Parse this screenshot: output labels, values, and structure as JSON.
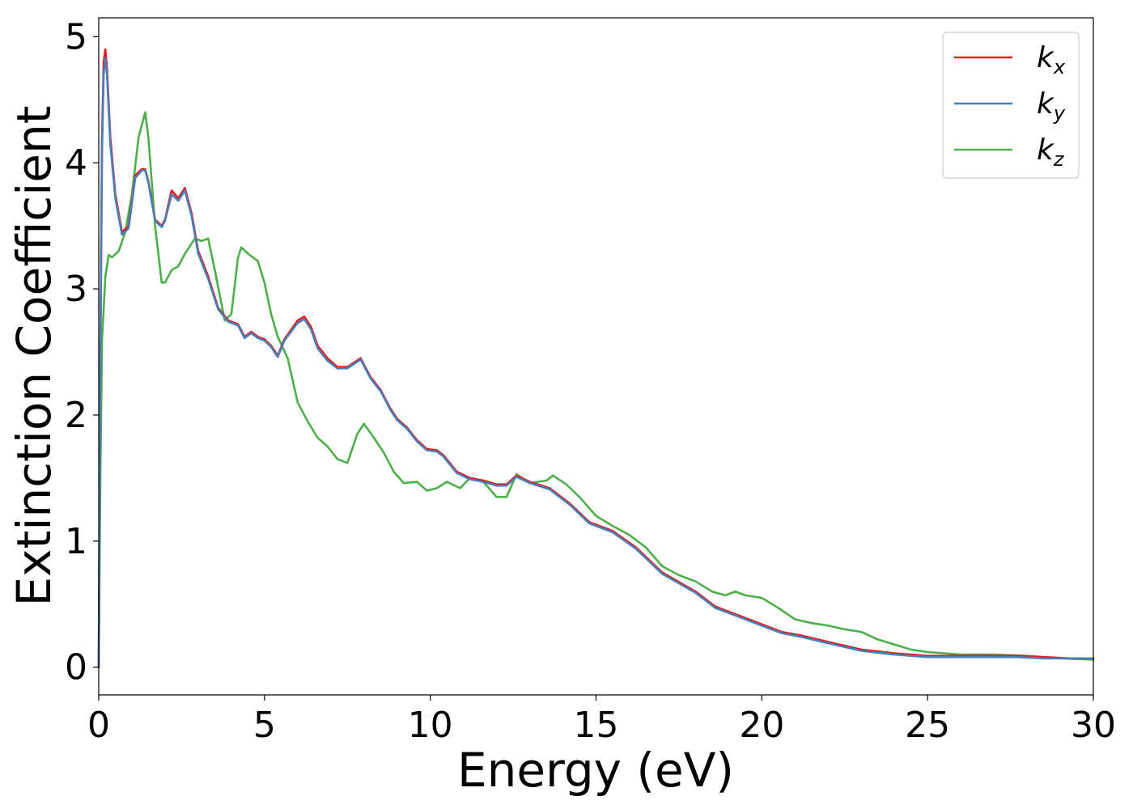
{
  "chart_data": {
    "type": "line",
    "xlabel": "Energy (eV)",
    "ylabel": "Extinction Coefficient",
    "xlim": [
      0,
      30
    ],
    "ylim": [
      -0.22,
      5.15
    ],
    "xticks": [
      0,
      5,
      10,
      15,
      20,
      25,
      30
    ],
    "yticks": [
      0,
      1,
      2,
      3,
      4,
      5
    ],
    "grid": false,
    "legend_position": "top-right",
    "series": [
      {
        "name": "k",
        "subscript": "x",
        "color": "#e41a1c",
        "x": [
          0,
          0.05,
          0.1,
          0.15,
          0.2,
          0.25,
          0.35,
          0.5,
          0.7,
          0.9,
          1.1,
          1.3,
          1.4,
          1.5,
          1.7,
          1.9,
          2.0,
          2.2,
          2.4,
          2.6,
          2.8,
          3.0,
          3.3,
          3.6,
          3.9,
          4.2,
          4.4,
          4.6,
          4.8,
          5.0,
          5.2,
          5.4,
          5.6,
          6.0,
          6.2,
          6.4,
          6.6,
          6.9,
          7.2,
          7.5,
          7.9,
          8.2,
          8.5,
          8.8,
          9.0,
          9.3,
          9.6,
          9.9,
          10.2,
          10.4,
          10.8,
          11.2,
          11.6,
          12.0,
          12.3,
          12.6,
          13.0,
          13.6,
          14.2,
          14.8,
          15.5,
          16.2,
          17.0,
          18.0,
          18.6,
          19.2,
          20.0,
          20.6,
          21.2,
          22.0,
          23.0,
          24.0,
          25.0,
          26.0,
          27.0,
          27.7,
          28.5,
          29.3,
          30.0
        ],
        "y": [
          0,
          2.5,
          4.2,
          4.8,
          4.9,
          4.75,
          4.2,
          3.75,
          3.45,
          3.5,
          3.9,
          3.95,
          3.95,
          3.85,
          3.55,
          3.5,
          3.55,
          3.78,
          3.72,
          3.8,
          3.6,
          3.3,
          3.1,
          2.85,
          2.75,
          2.72,
          2.62,
          2.66,
          2.62,
          2.6,
          2.55,
          2.47,
          2.6,
          2.75,
          2.78,
          2.7,
          2.55,
          2.45,
          2.38,
          2.38,
          2.45,
          2.3,
          2.2,
          2.05,
          1.97,
          1.9,
          1.8,
          1.73,
          1.72,
          1.68,
          1.55,
          1.5,
          1.48,
          1.45,
          1.45,
          1.52,
          1.47,
          1.42,
          1.3,
          1.15,
          1.08,
          0.95,
          0.75,
          0.6,
          0.48,
          0.42,
          0.34,
          0.28,
          0.25,
          0.2,
          0.14,
          0.11,
          0.09,
          0.09,
          0.09,
          0.09,
          0.08,
          0.07,
          0.07
        ]
      },
      {
        "name": "k",
        "subscript": "y",
        "color": "#4a7eb5",
        "x": [
          0,
          0.05,
          0.1,
          0.15,
          0.2,
          0.25,
          0.35,
          0.5,
          0.7,
          0.9,
          1.1,
          1.3,
          1.4,
          1.5,
          1.7,
          1.9,
          2.0,
          2.2,
          2.4,
          2.6,
          2.8,
          3.0,
          3.3,
          3.6,
          3.9,
          4.2,
          4.4,
          4.6,
          4.8,
          5.0,
          5.2,
          5.4,
          5.6,
          6.0,
          6.2,
          6.4,
          6.6,
          6.9,
          7.2,
          7.5,
          7.9,
          8.2,
          8.5,
          8.8,
          9.0,
          9.3,
          9.6,
          9.9,
          10.2,
          10.4,
          10.8,
          11.2,
          11.6,
          12.0,
          12.3,
          12.6,
          13.0,
          13.6,
          14.2,
          14.8,
          15.5,
          16.2,
          17.0,
          18.0,
          18.6,
          19.2,
          20.0,
          20.6,
          21.2,
          22.0,
          23.0,
          24.0,
          25.0,
          26.0,
          27.0,
          27.7,
          28.5,
          29.3,
          30.0
        ],
        "y": [
          0,
          2.4,
          4.1,
          4.7,
          4.83,
          4.7,
          4.15,
          3.72,
          3.43,
          3.48,
          3.88,
          3.94,
          3.94,
          3.84,
          3.54,
          3.49,
          3.54,
          3.75,
          3.7,
          3.78,
          3.58,
          3.28,
          3.08,
          2.84,
          2.74,
          2.71,
          2.61,
          2.65,
          2.61,
          2.59,
          2.54,
          2.46,
          2.59,
          2.73,
          2.76,
          2.68,
          2.53,
          2.43,
          2.37,
          2.37,
          2.44,
          2.29,
          2.19,
          2.04,
          1.96,
          1.89,
          1.79,
          1.72,
          1.71,
          1.67,
          1.54,
          1.49,
          1.47,
          1.44,
          1.44,
          1.51,
          1.46,
          1.41,
          1.29,
          1.14,
          1.07,
          0.94,
          0.74,
          0.59,
          0.47,
          0.41,
          0.33,
          0.27,
          0.24,
          0.19,
          0.13,
          0.1,
          0.08,
          0.08,
          0.08,
          0.08,
          0.07,
          0.07,
          0.07
        ]
      },
      {
        "name": "k",
        "subscript": "z",
        "color": "#4daf4a",
        "x": [
          0,
          0.05,
          0.1,
          0.2,
          0.3,
          0.4,
          0.6,
          0.8,
          1.0,
          1.2,
          1.4,
          1.5,
          1.7,
          1.9,
          2.0,
          2.2,
          2.4,
          2.6,
          2.9,
          3.1,
          3.3,
          3.5,
          3.8,
          4.0,
          4.2,
          4.3,
          4.5,
          4.8,
          5.0,
          5.2,
          5.4,
          5.7,
          6.0,
          6.3,
          6.6,
          6.9,
          7.2,
          7.5,
          7.8,
          8.0,
          8.3,
          8.6,
          8.9,
          9.2,
          9.6,
          9.9,
          10.2,
          10.5,
          10.9,
          11.2,
          11.6,
          12.0,
          12.3,
          12.6,
          13.0,
          13.5,
          13.7,
          14.1,
          14.5,
          15.0,
          15.5,
          16.0,
          16.5,
          17.0,
          17.5,
          18.0,
          18.5,
          18.9,
          19.2,
          19.5,
          20.0,
          20.5,
          21.0,
          21.5,
          22.0,
          22.5,
          23.0,
          23.5,
          24.0,
          24.5,
          25.0,
          26.0,
          26.5,
          27.0,
          28.0,
          29.0,
          30.0
        ],
        "y": [
          0,
          1.5,
          2.6,
          3.1,
          3.27,
          3.25,
          3.3,
          3.45,
          3.75,
          4.2,
          4.4,
          4.2,
          3.5,
          3.05,
          3.05,
          3.15,
          3.18,
          3.28,
          3.4,
          3.38,
          3.4,
          3.15,
          2.75,
          2.8,
          3.25,
          3.33,
          3.28,
          3.22,
          3.05,
          2.8,
          2.62,
          2.45,
          2.1,
          1.95,
          1.82,
          1.75,
          1.65,
          1.62,
          1.85,
          1.93,
          1.82,
          1.7,
          1.55,
          1.46,
          1.47,
          1.4,
          1.42,
          1.47,
          1.42,
          1.5,
          1.47,
          1.35,
          1.35,
          1.53,
          1.46,
          1.48,
          1.52,
          1.45,
          1.35,
          1.2,
          1.12,
          1.05,
          0.95,
          0.8,
          0.73,
          0.68,
          0.6,
          0.57,
          0.6,
          0.57,
          0.55,
          0.47,
          0.38,
          0.35,
          0.33,
          0.3,
          0.28,
          0.22,
          0.18,
          0.14,
          0.12,
          0.1,
          0.1,
          0.1,
          0.09,
          0.07,
          0.06
        ]
      }
    ]
  }
}
